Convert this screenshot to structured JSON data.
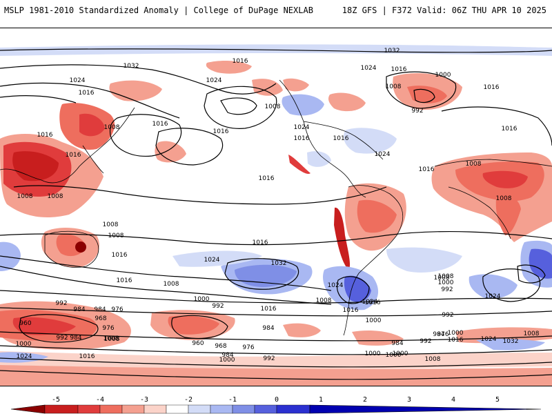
{
  "header": {
    "left": "MSLP 1981-2010 Standardized Anomaly | College of DuPage NEXLAB",
    "right": "18Z GFS | F372 Valid: 06Z THU APR 10 2025"
  },
  "colorbar": {
    "ticks": [
      "-5",
      "-4",
      "-3",
      "-2",
      "-1",
      "0",
      "1",
      "2",
      "3",
      "4",
      "5"
    ],
    "colors": [
      "#8b0000",
      "#c81e1e",
      "#e03c3c",
      "#ee6e5e",
      "#f4a090",
      "#fbd3c9",
      "#ffffff",
      "#d3dcf7",
      "#a9b8f2",
      "#7f8fe6",
      "#5660dd",
      "#2b30d0",
      "#0000b0"
    ]
  },
  "isobar_labels": [
    {
      "t": "1032"
    },
    {
      "t": "1016"
    },
    {
      "t": "1032"
    },
    {
      "t": "1024"
    },
    {
      "t": "1016"
    },
    {
      "t": "1000"
    },
    {
      "t": "1024"
    },
    {
      "t": "1024"
    },
    {
      "t": "1008"
    },
    {
      "t": "1016"
    },
    {
      "t": "1016"
    },
    {
      "t": "992"
    },
    {
      "t": "1008"
    },
    {
      "t": "1016"
    },
    {
      "t": "1008"
    },
    {
      "t": "1016"
    },
    {
      "t": "1024"
    },
    {
      "t": "1016"
    },
    {
      "t": "1016"
    },
    {
      "t": "1024"
    },
    {
      "t": "1016"
    },
    {
      "t": "1008"
    },
    {
      "t": "1008"
    },
    {
      "t": "1016"
    },
    {
      "t": "1016"
    },
    {
      "t": "1016"
    },
    {
      "t": "1008"
    },
    {
      "t": "1008"
    },
    {
      "t": "1016"
    },
    {
      "t": "1008"
    },
    {
      "t": "1008"
    },
    {
      "t": "1024"
    },
    {
      "t": "1016"
    },
    {
      "t": "1016"
    },
    {
      "t": "1032"
    },
    {
      "t": "1008"
    },
    {
      "t": "1016"
    },
    {
      "t": "1000"
    },
    {
      "t": "1024"
    },
    {
      "t": "1008"
    },
    {
      "t": "1008"
    },
    {
      "t": "1000"
    },
    {
      "t": "992"
    },
    {
      "t": "1024"
    },
    {
      "t": "1016"
    },
    {
      "t": "992"
    },
    {
      "t": "1000"
    },
    {
      "t": "992"
    },
    {
      "t": "984"
    },
    {
      "t": "976"
    },
    {
      "t": "1016"
    },
    {
      "t": "1008"
    },
    {
      "t": "960"
    },
    {
      "t": "968"
    },
    {
      "t": "984"
    },
    {
      "t": "976"
    },
    {
      "t": "1000"
    },
    {
      "t": "992"
    },
    {
      "t": "984"
    },
    {
      "t": "1008"
    },
    {
      "t": "1024"
    },
    {
      "t": "1016"
    },
    {
      "t": "1000"
    },
    {
      "t": "984"
    },
    {
      "t": "960"
    },
    {
      "t": "968"
    },
    {
      "t": "976"
    },
    {
      "t": "984"
    },
    {
      "t": "1016"
    },
    {
      "t": "1008"
    },
    {
      "t": "1000"
    },
    {
      "t": "992"
    },
    {
      "t": "1000"
    },
    {
      "t": "984"
    },
    {
      "t": "992"
    },
    {
      "t": "976"
    },
    {
      "t": "984"
    },
    {
      "t": "1016"
    },
    {
      "t": "1024"
    },
    {
      "t": "1032"
    },
    {
      "t": "1008"
    },
    {
      "t": "1000"
    },
    {
      "t": "1008"
    },
    {
      "t": "1000"
    },
    {
      "t": "992"
    },
    {
      "t": "1024"
    }
  ]
}
